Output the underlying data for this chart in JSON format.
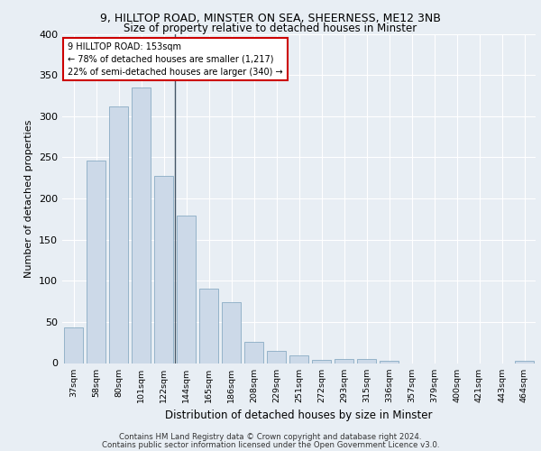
{
  "title_line1": "9, HILLTOP ROAD, MINSTER ON SEA, SHEERNESS, ME12 3NB",
  "title_line2": "Size of property relative to detached houses in Minster",
  "xlabel": "Distribution of detached houses by size in Minster",
  "ylabel": "Number of detached properties",
  "categories": [
    "37sqm",
    "58sqm",
    "80sqm",
    "101sqm",
    "122sqm",
    "144sqm",
    "165sqm",
    "186sqm",
    "208sqm",
    "229sqm",
    "251sqm",
    "272sqm",
    "293sqm",
    "315sqm",
    "336sqm",
    "357sqm",
    "379sqm",
    "400sqm",
    "421sqm",
    "443sqm",
    "464sqm"
  ],
  "values": [
    43,
    246,
    312,
    335,
    227,
    179,
    90,
    74,
    26,
    15,
    9,
    4,
    5,
    5,
    3,
    0,
    0,
    0,
    0,
    0,
    3
  ],
  "bar_color": "#ccd9e8",
  "bar_edge_color": "#7aa0bb",
  "annotation_text_line1": "9 HILLTOP ROAD: 153sqm",
  "annotation_text_line2": "← 78% of detached houses are smaller (1,217)",
  "annotation_text_line3": "22% of semi-detached houses are larger (340) →",
  "annotation_box_facecolor": "#ffffff",
  "annotation_box_edgecolor": "#cc0000",
  "ylim": [
    0,
    400
  ],
  "yticks": [
    0,
    50,
    100,
    150,
    200,
    250,
    300,
    350,
    400
  ],
  "footer_line1": "Contains HM Land Registry data © Crown copyright and database right 2024.",
  "footer_line2": "Contains public sector information licensed under the Open Government Licence v3.0.",
  "bg_color": "#e8eef4",
  "plot_bg_color": "#e8eef4",
  "grid_color": "#ffffff",
  "property_line_x": 4.5
}
